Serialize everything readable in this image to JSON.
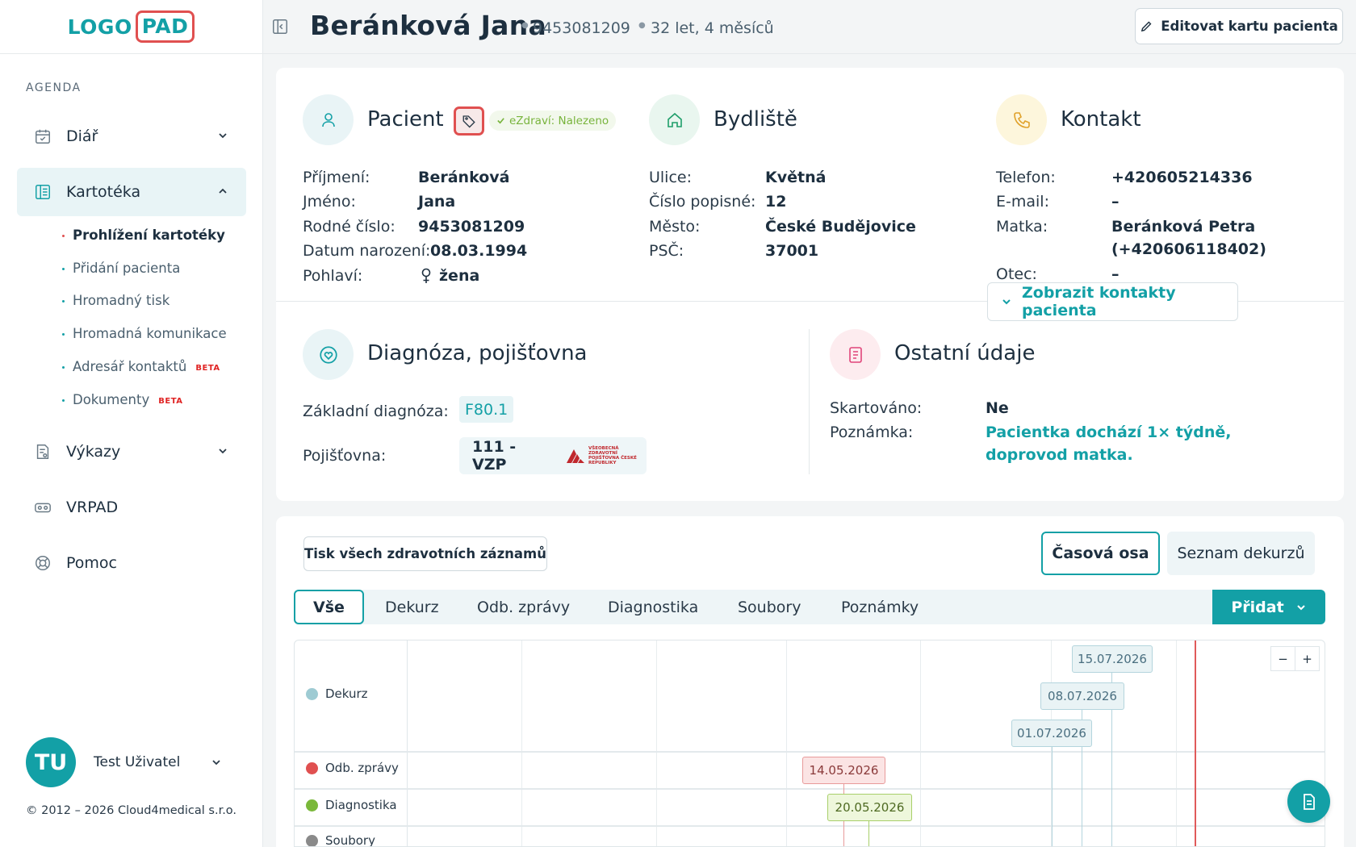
{
  "app": {
    "logo_left": "LOGO",
    "logo_right": "PAD"
  },
  "sidebar": {
    "section_label": "AGENDA",
    "items": [
      {
        "label": "Diář",
        "icon": "calendar-icon"
      },
      {
        "label": "Kartotéka",
        "icon": "file-cabinet-icon",
        "active": true
      },
      {
        "label": "Výkazy",
        "icon": "report-icon"
      },
      {
        "label": "VRPAD",
        "icon": "vr-headset-icon"
      },
      {
        "label": "Pomoc",
        "icon": "lifebuoy-icon"
      }
    ],
    "subitems": [
      {
        "label": "Prohlížení kartotéky",
        "active": true
      },
      {
        "label": "Přidání pacienta"
      },
      {
        "label": "Hromadný tisk"
      },
      {
        "label": "Hromadná komunikace"
      },
      {
        "label": "Adresář kontaktů",
        "badge": "BETA"
      },
      {
        "label": "Dokumenty",
        "badge": "BETA"
      }
    ],
    "user": {
      "initials": "TU",
      "name": "Test Uživatel"
    },
    "copyright": "© 2012 – 2026 Cloud4medical s.r.o."
  },
  "header": {
    "patient_name": "Beránková Jana",
    "birth_number": "9453081209",
    "age": "32 let, 4 měsíců",
    "edit_button": "Editovat kartu pacienta"
  },
  "patient": {
    "title": "Pacient",
    "ezdravi": "eZdraví: Nalezeno",
    "fields": [
      {
        "label": "Příjmení:",
        "value": "Beránková"
      },
      {
        "label": "Jméno:",
        "value": "Jana"
      },
      {
        "label": "Rodné číslo:",
        "value": "9453081209"
      },
      {
        "label": "Datum narození:",
        "value": "08.03.1994"
      },
      {
        "label": "Pohlaví:",
        "value": "žena"
      }
    ]
  },
  "address": {
    "title": "Bydliště",
    "fields": [
      {
        "label": "Ulice:",
        "value": "Květná"
      },
      {
        "label": "Číslo popisné:",
        "value": "12"
      },
      {
        "label": "Město:",
        "value": "České Budějovice"
      },
      {
        "label": "PSČ:",
        "value": "37001"
      }
    ]
  },
  "contact": {
    "title": "Kontakt",
    "fields": [
      {
        "label": "Telefon:",
        "value": "+420605214336"
      },
      {
        "label": "E-mail:",
        "value": "–"
      },
      {
        "label": "Matka:",
        "value": "Beránková Petra",
        "value2": "(+420606118402)"
      },
      {
        "label": "Otec:",
        "value": "–"
      }
    ],
    "show_contacts": "Zobrazit kontakty pacienta"
  },
  "diagnosis": {
    "title": "Diagnóza, pojišťovna",
    "basic_label": "Základní diagnóza:",
    "basic_value": "F80.1",
    "insurance_label": "Pojišťovna:",
    "insurance_value": "111 - VZP",
    "insurer_logo_text": "VŠEOBECNÁ ZDRAVOTNÍ POJIŠŤOVNA ČESKÉ REPUBLIKY"
  },
  "other": {
    "title": "Ostatní údaje",
    "shredded_label": "Skartováno:",
    "shredded_value": "Ne",
    "note_label": "Poznámka:",
    "note_value": "Pacientka dochází 1× týdně, doprovod matka."
  },
  "records": {
    "print_all": "Tisk všech zdravotních záznamů",
    "view_timeline": "Časová osa",
    "view_list": "Seznam dekurzů",
    "tabs": [
      "Vše",
      "Dekurz",
      "Odb. zprávy",
      "Diagnostika",
      "Soubory",
      "Poznámky"
    ],
    "add_button": "Přidat",
    "zoom_out": "−",
    "zoom_in": "+",
    "timeline_rows": [
      {
        "label": "Dekurz",
        "color": "#9ecbd3"
      },
      {
        "label": "Odb. zprávy",
        "color": "#e05050"
      },
      {
        "label": "Diagnostika",
        "color": "#7ab83a"
      },
      {
        "label": "Soubory",
        "color": "#8a8a8a"
      }
    ],
    "events": [
      {
        "date": "15.07.2026",
        "row": "Dekurz"
      },
      {
        "date": "08.07.2026",
        "row": "Dekurz"
      },
      {
        "date": "01.07.2026",
        "row": "Dekurz"
      },
      {
        "date": "14.05.2026",
        "row": "Odb. zprávy"
      },
      {
        "date": "20.05.2026",
        "row": "Diagnostika"
      }
    ]
  },
  "colors": {
    "accent": "#13a0a6",
    "danger": "#e05050",
    "sidebar_active_bg": "#e8f4f6"
  }
}
